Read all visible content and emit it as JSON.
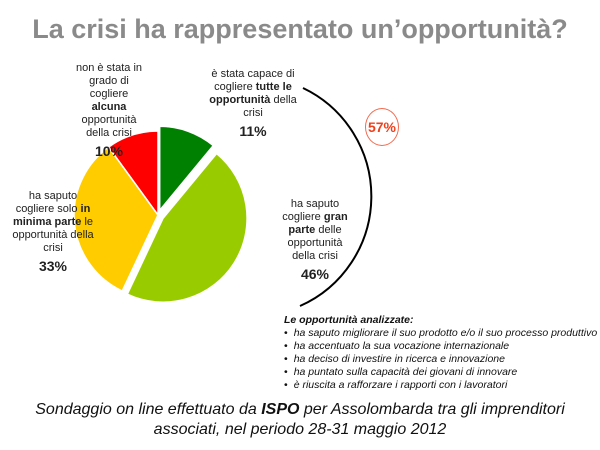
{
  "title": "La crisi ha rappresentato un’opportunità?",
  "chart_data": {
    "type": "pie",
    "slices": [
      {
        "name": "tutte",
        "pre": "è stata capace di cogliere ",
        "bold": "tutte le opportunità",
        "post": " della crisi",
        "value": 11,
        "label": "11%",
        "color": "#008000"
      },
      {
        "name": "gran-parte",
        "pre": "ha saputo cogliere ",
        "bold": "gran parte",
        "post": " delle opportunità della crisi",
        "value": 46,
        "label": "46%",
        "color": "#99cc00"
      },
      {
        "name": "minima-parte",
        "pre": "ha saputo cogliere solo ",
        "bold": "in minima parte",
        "post": " le opportunità della crisi",
        "value": 33,
        "label": "33%",
        "color": "#ffcc00"
      },
      {
        "name": "alcuna",
        "pre": "non è stata in grado di cogliere ",
        "bold": "alcuna",
        "post": " opportunità della crisi",
        "value": 10,
        "label": "10%",
        "color": "#ff0000"
      }
    ],
    "annotation": "57%"
  },
  "opportunities": {
    "heading": "Le opportunità analizzate:",
    "items": [
      "ha saputo migliorare il suo prodotto e/o il suo processo produttivo",
      "ha accentuato la sua vocazione internazionale",
      "ha deciso di investire in ricerca e innovazione",
      "ha puntato sulla capacità dei giovani di innovare",
      "è riuscita a rafforzare i rapporti con i lavoratori"
    ]
  },
  "footer": {
    "pre": "Sondaggio on line effettuato da ",
    "bold": "ISPO",
    "post": " per Assolombarda tra gli imprenditori associati, nel periodo 28-31 maggio 2012"
  }
}
